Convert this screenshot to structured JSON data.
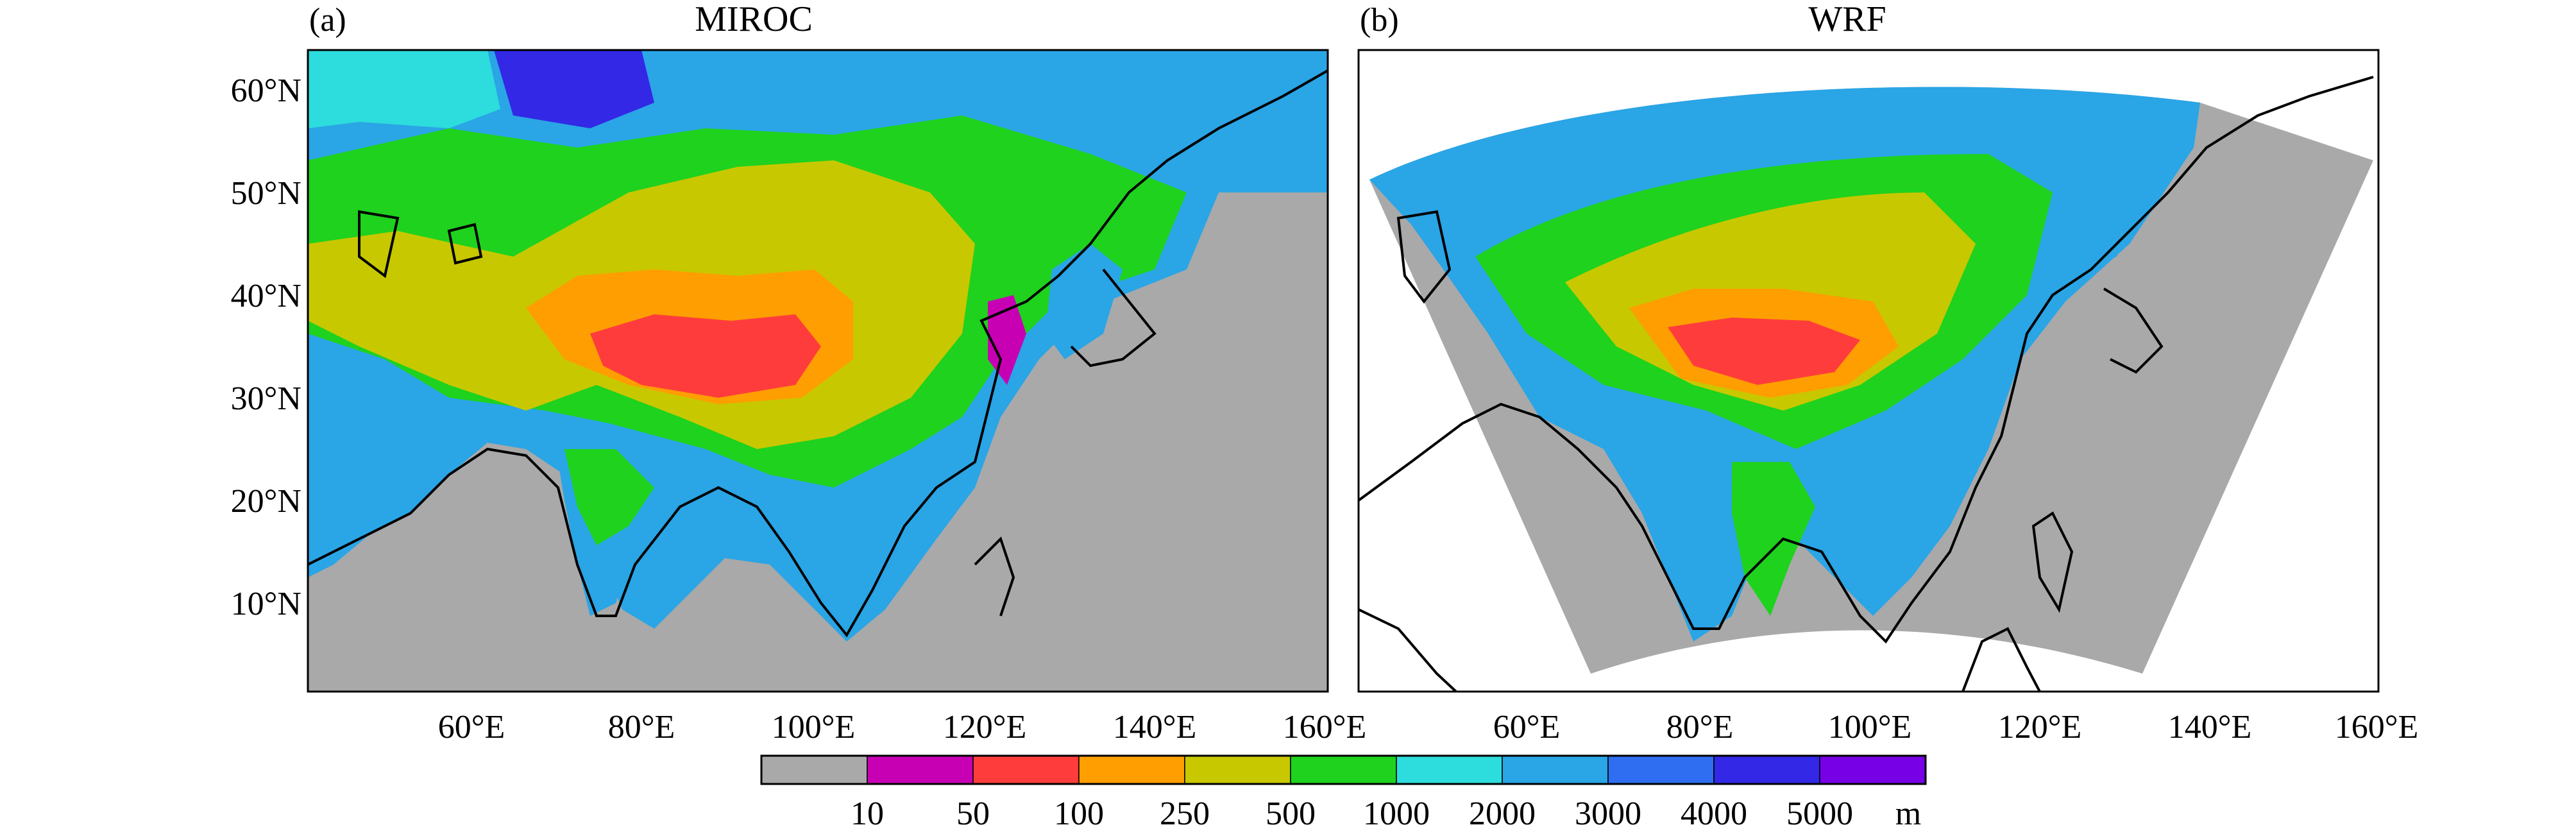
{
  "panels": [
    {
      "letter": "(a)",
      "title": "MIROC",
      "lat_ticks": [
        "60°N",
        "50°N",
        "40°N",
        "30°N",
        "20°N",
        "10°N"
      ],
      "lon_ticks": [
        "60°E",
        "80°E",
        "100°E",
        "120°E",
        "140°E",
        "160°E"
      ]
    },
    {
      "letter": "(b)",
      "title": "WRF",
      "lon_ticks": [
        "60°E",
        "80°E",
        "100°E",
        "120°E",
        "140°E",
        "160°E"
      ]
    }
  ],
  "colorbar": {
    "labels": [
      "10",
      "50",
      "100",
      "250",
      "500",
      "1000",
      "2000",
      "3000",
      "4000",
      "5000"
    ],
    "unit": "m",
    "colors": [
      "#a9a9a9",
      "#c800b4",
      "#ff3c3c",
      "#ff9e00",
      "#c8c800",
      "#1ed21e",
      "#2ddcdc",
      "#2aa5e6",
      "#2f6ef0",
      "#3228e6",
      "#7800e6"
    ]
  },
  "colors": {
    "ocean": "#a9a9a9",
    "coast": "#000000",
    "outside_domain": "#ffffff"
  }
}
